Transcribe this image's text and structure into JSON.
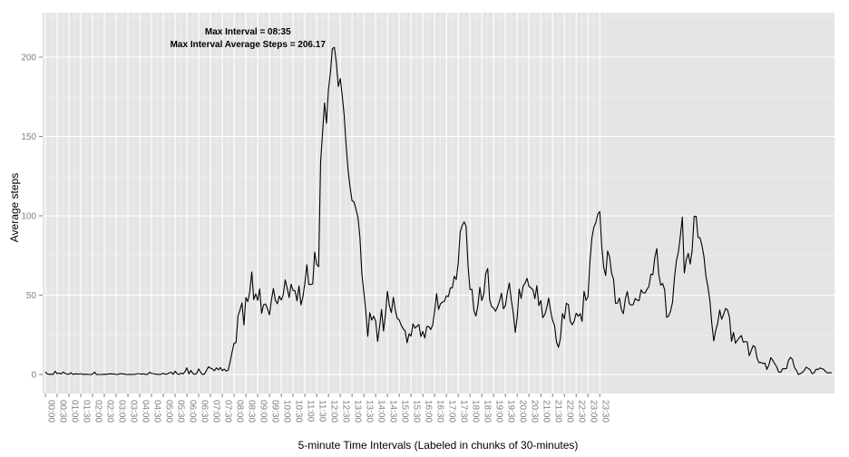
{
  "chart_data": {
    "type": "line",
    "xlabel": "5-minute Time Intervals (Labeled in chunks of 30-minutes)",
    "ylabel": "Average steps",
    "ylim": [
      -12,
      228
    ],
    "xlim": [
      0,
      288
    ],
    "y_ticks": [
      0,
      50,
      100,
      150,
      200
    ],
    "x_tick_labels": [
      "00:00",
      "00:30",
      "01:00",
      "01:30",
      "02:00",
      "02:30",
      "03:00",
      "03:30",
      "04:00",
      "04:30",
      "05:00",
      "05:30",
      "06:00",
      "06:30",
      "07:00",
      "07:30",
      "08:00",
      "08:30",
      "09:00",
      "09:30",
      "10:00",
      "10:30",
      "11:00",
      "11:30",
      "12:00",
      "12:30",
      "13:00",
      "13:30",
      "14:00",
      "14:30",
      "15:00",
      "15:30",
      "16:00",
      "16:30",
      "17:00",
      "17:30",
      "18:00",
      "18:30",
      "19:00",
      "19:30",
      "20:00",
      "20:30",
      "21:00",
      "21:30",
      "22:00",
      "22:30",
      "23:00",
      "23:30"
    ],
    "x_tick_step": 6,
    "grid": true,
    "annotation": [
      "Max Interval = 08:35",
      "Max Interval Average Steps = 206.17"
    ],
    "max_index": 103,
    "series": [
      {
        "color": "#000000",
        "values": [
          1.7,
          0.3,
          0.1,
          0.2,
          0.1,
          2.1,
          0.5,
          0.9,
          0.3,
          1.5,
          0.8,
          0.2,
          0.2,
          1.1,
          0.1,
          0.3,
          0.4,
          0.2,
          0.5,
          0.1,
          0.1,
          0.2,
          0.0,
          0.0,
          0.2,
          1.5,
          0.0,
          0.0,
          0.0,
          0.0,
          0.2,
          0.1,
          0.3,
          0.4,
          0.3,
          0.3,
          0.0,
          0.1,
          0.6,
          0.3,
          0.3,
          0.0,
          0.0,
          0.1,
          0.0,
          0.1,
          0.2,
          0.5,
          0.5,
          0.2,
          0.4,
          0.1,
          0.0,
          1.4,
          0.7,
          0.5,
          0.2,
          0.2,
          0.0,
          0.2,
          0.8,
          0.1,
          0.3,
          1.0,
          1.4,
          0.1,
          2.1,
          0.5,
          0.0,
          1.0,
          0.3,
          1.7,
          4.2,
          0.4,
          2.6,
          0.7,
          0.1,
          0.8,
          3.5,
          1.3,
          0.0,
          0.3,
          2.7,
          4.9,
          4.0,
          3.4,
          2.4,
          4.2,
          2.9,
          4.4,
          2.4,
          3.4,
          2.1,
          2.8,
          8.1,
          14.2,
          19.7,
          20.1,
          37.0,
          40.6,
          45.2,
          31.2,
          48.5,
          45.9,
          52.4,
          64.6,
          47.2,
          50.8,
          46.7,
          53.9,
          38.5,
          43.9,
          44.4,
          41.3,
          37.6,
          47.0,
          54.2,
          46.7,
          44.6,
          49.4,
          46.9,
          50.3,
          59.6,
          54.4,
          48.5,
          56.8,
          53.0,
          52.7,
          46.4,
          55.8,
          43.8,
          48.9,
          57.6,
          69.2,
          56.8,
          56.7,
          57.1,
          77.1,
          69.4,
          67.9,
          133.6,
          152.3,
          171.1,
          158.3,
          179.6,
          190.5,
          205.4,
          206.2,
          196.7,
          181.5,
          186.5,
          175.8,
          163.3,
          144.1,
          128.5,
          118.1,
          109.5,
          108.7,
          104.3,
          99.0,
          86.5,
          63.4,
          51.9,
          39.8,
          24.0,
          38.9,
          34.3,
          36.7,
          33.8,
          20.9,
          30.1,
          40.9,
          27.4,
          37.7,
          52.4,
          43.2,
          39.0,
          48.6,
          40.6,
          35.3,
          34.3,
          31.1,
          28.8,
          27.5,
          20.0,
          25.6,
          24.2,
          31.9,
          29.2,
          30.3,
          31.5,
          23.9,
          27.1,
          23.0,
          30.1,
          30.3,
          28.3,
          31.1,
          39.9,
          51.0,
          41.0,
          44.6,
          45.6,
          46.2,
          49.6,
          49.1,
          54.5,
          54.7,
          61.9,
          59.9,
          70.2,
          89.8,
          93.8,
          96.2,
          93.4,
          68.6,
          53.5,
          53.7,
          40.3,
          36.9,
          43.3,
          55.0,
          46.6,
          50.6,
          63.6,
          66.8,
          47.1,
          42.8,
          41.8,
          39.9,
          42.7,
          46.2,
          51.2,
          41.4,
          43.5,
          51.6,
          57.7,
          46.9,
          38.9,
          26.5,
          35.9,
          53.8,
          47.9,
          55.6,
          57.6,
          60.6,
          55.5,
          54.6,
          53.4,
          47.8,
          56.0,
          43.4,
          46.6,
          35.8,
          37.7,
          41.8,
          48.2,
          40.1,
          34.0,
          30.9,
          20.5,
          17.2,
          22.7,
          38.4,
          35.1,
          44.9,
          44.1,
          33.5,
          31.3,
          33.7,
          38.6,
          36.7,
          38.3,
          33.5,
          52.4,
          46.7,
          49.0,
          71.2,
          86.0,
          92.9,
          95.7,
          101.1,
          102.7,
          80.7,
          67.6,
          62.4,
          77.8,
          74.1,
          63.8,
          60.1,
          44.9,
          45.0,
          48.2,
          40.8,
          38.3,
          47.6,
          52.3,
          44.6,
          43.7,
          44.0,
          47.9,
          46.9,
          46.5,
          53.3,
          51.5,
          51.3,
          53.7,
          55.5,
          63.2,
          62.9,
          73.6,
          79.4,
          63.1,
          56.3,
          57.3,
          53.4,
          36.0,
          36.8,
          39.9,
          45.5,
          61.2,
          71.7,
          77.3,
          87.4,
          99.2,
          64.0,
          72.3,
          76.3,
          69.6,
          78.5,
          99.6,
          99.7,
          86.4,
          86.1,
          81.1,
          74.2,
          61.9,
          55.3,
          46.6,
          31.9,
          21.1,
          27.9,
          32.4,
          40.6,
          34.8,
          37.9,
          41.6,
          40.7,
          35.9,
          20.9,
          26.5,
          19.7,
          21.6,
          23.2,
          24.6,
          20.3,
          20.8,
          20.5,
          11.8,
          14.9,
          18.2,
          17.3,
          10.2,
          7.4,
          7.6,
          6.9,
          7.2,
          3.2,
          6.0,
          10.6,
          8.9,
          6.7,
          4.8,
          1.5,
          1.4,
          3.6,
          3.6,
          3.8,
          8.9,
          10.8,
          9.5,
          4.5,
          2.6,
          0.0,
          0.6,
          1.2,
          2.6,
          4.6,
          3.8,
          3.0,
          0.5,
          1.0,
          3.3,
          3.2,
          4.1,
          3.7,
          3.1,
          1.7,
          0.9,
          1.2,
          1.0
        ]
      }
    ]
  }
}
